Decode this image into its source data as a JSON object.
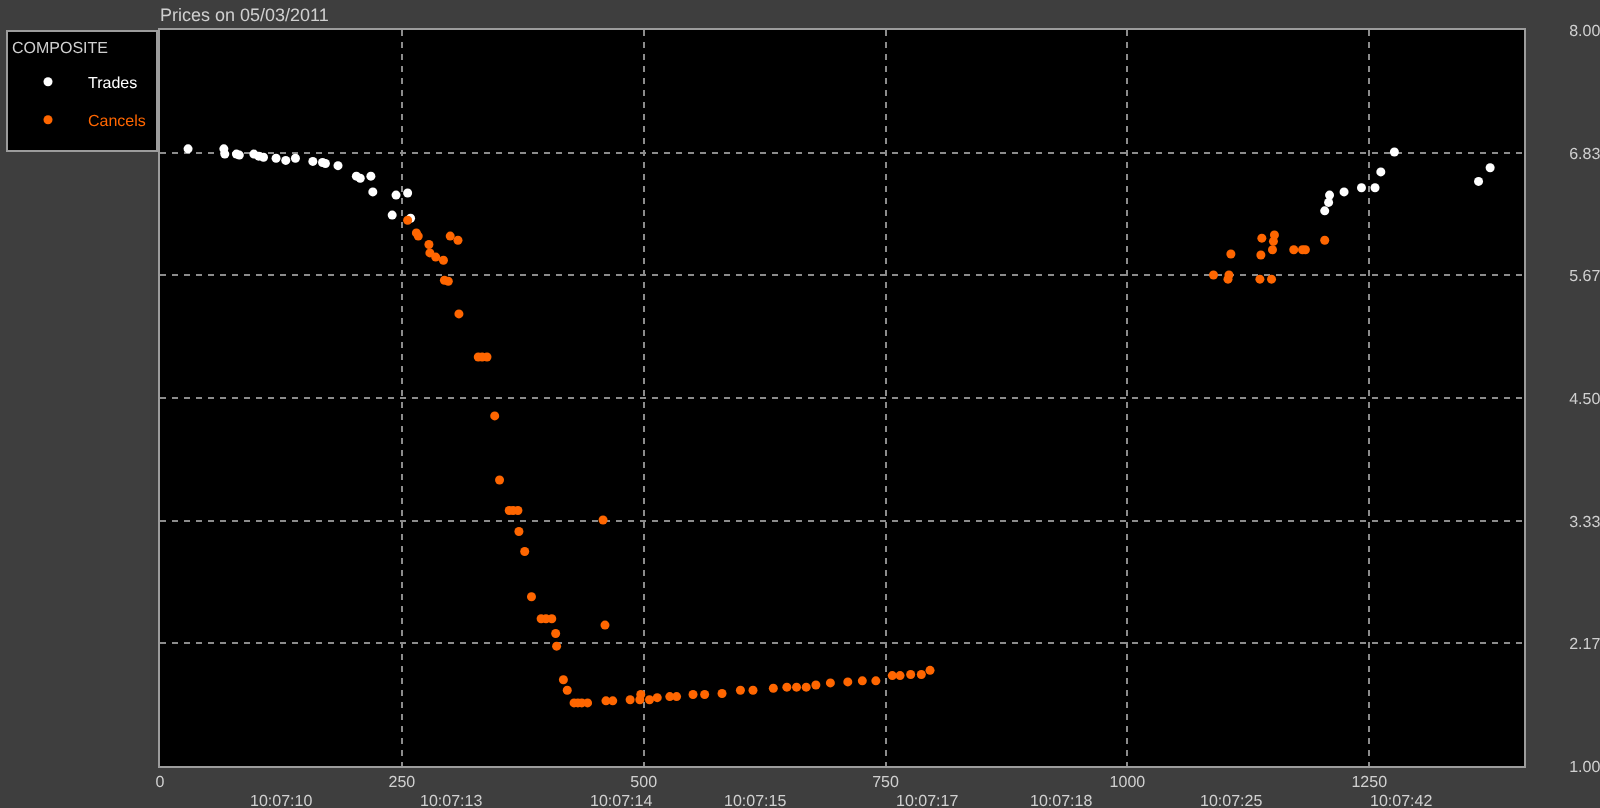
{
  "chart_data": {
    "type": "scatter",
    "title": "Prices on 05/03/2011",
    "legend_title": "COMPOSITE",
    "series": [
      {
        "name": "Trades",
        "color": "#ffffff",
        "x": [
          29,
          66,
          67,
          79,
          82,
          97,
          102,
          107,
          120,
          130,
          140,
          158,
          168,
          171,
          184,
          203,
          207,
          218,
          220,
          244,
          256,
          240,
          259,
          1204,
          1208,
          1209,
          1224,
          1242,
          1256,
          1262,
          1276,
          1363,
          1375
        ],
        "values": [
          6.87,
          6.87,
          6.82,
          6.82,
          6.81,
          6.82,
          6.8,
          6.79,
          6.78,
          6.76,
          6.78,
          6.75,
          6.74,
          6.73,
          6.71,
          6.61,
          6.59,
          6.61,
          6.46,
          6.43,
          6.45,
          6.24,
          6.21,
          6.28,
          6.36,
          6.43,
          6.46,
          6.5,
          6.5,
          6.65,
          6.84,
          6.56,
          6.69
        ]
      },
      {
        "name": "Cancels",
        "color": "#ff6600",
        "x": [
          256,
          265,
          267,
          278,
          279,
          285,
          293,
          300,
          308,
          294,
          298,
          309,
          329,
          333,
          338,
          346,
          351,
          361,
          365,
          370,
          371,
          377,
          384,
          394,
          399,
          405,
          409,
          410,
          417,
          421,
          428,
          432,
          436,
          442,
          458,
          460,
          461,
          468,
          486,
          496,
          497,
          506,
          514,
          527,
          534,
          551,
          563,
          581,
          600,
          613,
          634,
          648,
          658,
          668,
          678,
          693,
          711,
          726,
          740,
          757,
          765,
          776,
          787,
          796,
          1089,
          1104,
          1105,
          1107,
          1137,
          1149,
          1138,
          1139,
          1150,
          1151,
          1152,
          1172,
          1181,
          1184,
          1204
        ],
        "values": [
          6.19,
          6.07,
          6.04,
          5.96,
          5.88,
          5.84,
          5.81,
          6.04,
          6.0,
          5.62,
          5.61,
          5.3,
          4.89,
          4.89,
          4.89,
          4.33,
          3.72,
          3.43,
          3.43,
          3.43,
          3.23,
          3.04,
          2.61,
          2.4,
          2.4,
          2.4,
          2.26,
          2.14,
          1.82,
          1.72,
          1.6,
          1.6,
          1.6,
          1.6,
          3.34,
          2.34,
          1.62,
          1.62,
          1.63,
          1.63,
          1.68,
          1.63,
          1.65,
          1.66,
          1.66,
          1.68,
          1.68,
          1.69,
          1.72,
          1.72,
          1.74,
          1.75,
          1.75,
          1.75,
          1.77,
          1.79,
          1.8,
          1.81,
          1.81,
          1.86,
          1.86,
          1.87,
          1.87,
          1.91,
          5.67,
          5.63,
          5.67,
          5.87,
          5.63,
          5.63,
          5.86,
          6.02,
          5.91,
          5.99,
          6.05,
          5.91,
          5.91,
          5.91,
          6.0
        ]
      }
    ],
    "xlim": [
      0,
      1410
    ],
    "xticks": [
      0,
      250,
      500,
      750,
      1000,
      1250
    ],
    "ylim": [
      1,
      8
    ],
    "yticks": [
      {
        "value": 1,
        "label": "1.00"
      },
      2.17,
      3.33,
      {
        "value": 4.5,
        "label": "4.50"
      },
      5.67,
      6.83,
      {
        "value": 8,
        "label": "8.00"
      }
    ],
    "annotations": [
      "10:07:10",
      "10:07:13",
      "10:07:14",
      "10:07:15",
      "10:07:17",
      "10:07:18",
      "10:07:25",
      "10:07:42"
    ],
    "grid": true,
    "legend": "left",
    "marker": "circle"
  }
}
